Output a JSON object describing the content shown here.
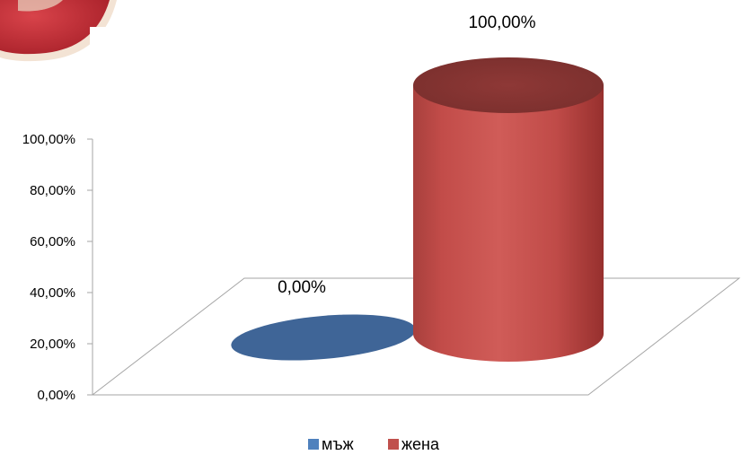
{
  "chart_data": {
    "type": "bar",
    "shape": "3d-cylinder",
    "categories": [
      "мъж",
      "жена"
    ],
    "values": [
      0.0,
      100.0
    ],
    "value_labels": [
      "0,00%",
      "100,00%"
    ],
    "ylim": [
      0,
      100
    ],
    "yticks": [
      "0,00%",
      "20,00%",
      "40,00%",
      "60,00%",
      "80,00%",
      "100,00%"
    ],
    "grid": false,
    "legend": {
      "position": "bottom",
      "entries": [
        "мъж",
        "жена"
      ]
    },
    "colors": {
      "мъж": "#4f81bd",
      "жена": "#c0504d"
    }
  }
}
